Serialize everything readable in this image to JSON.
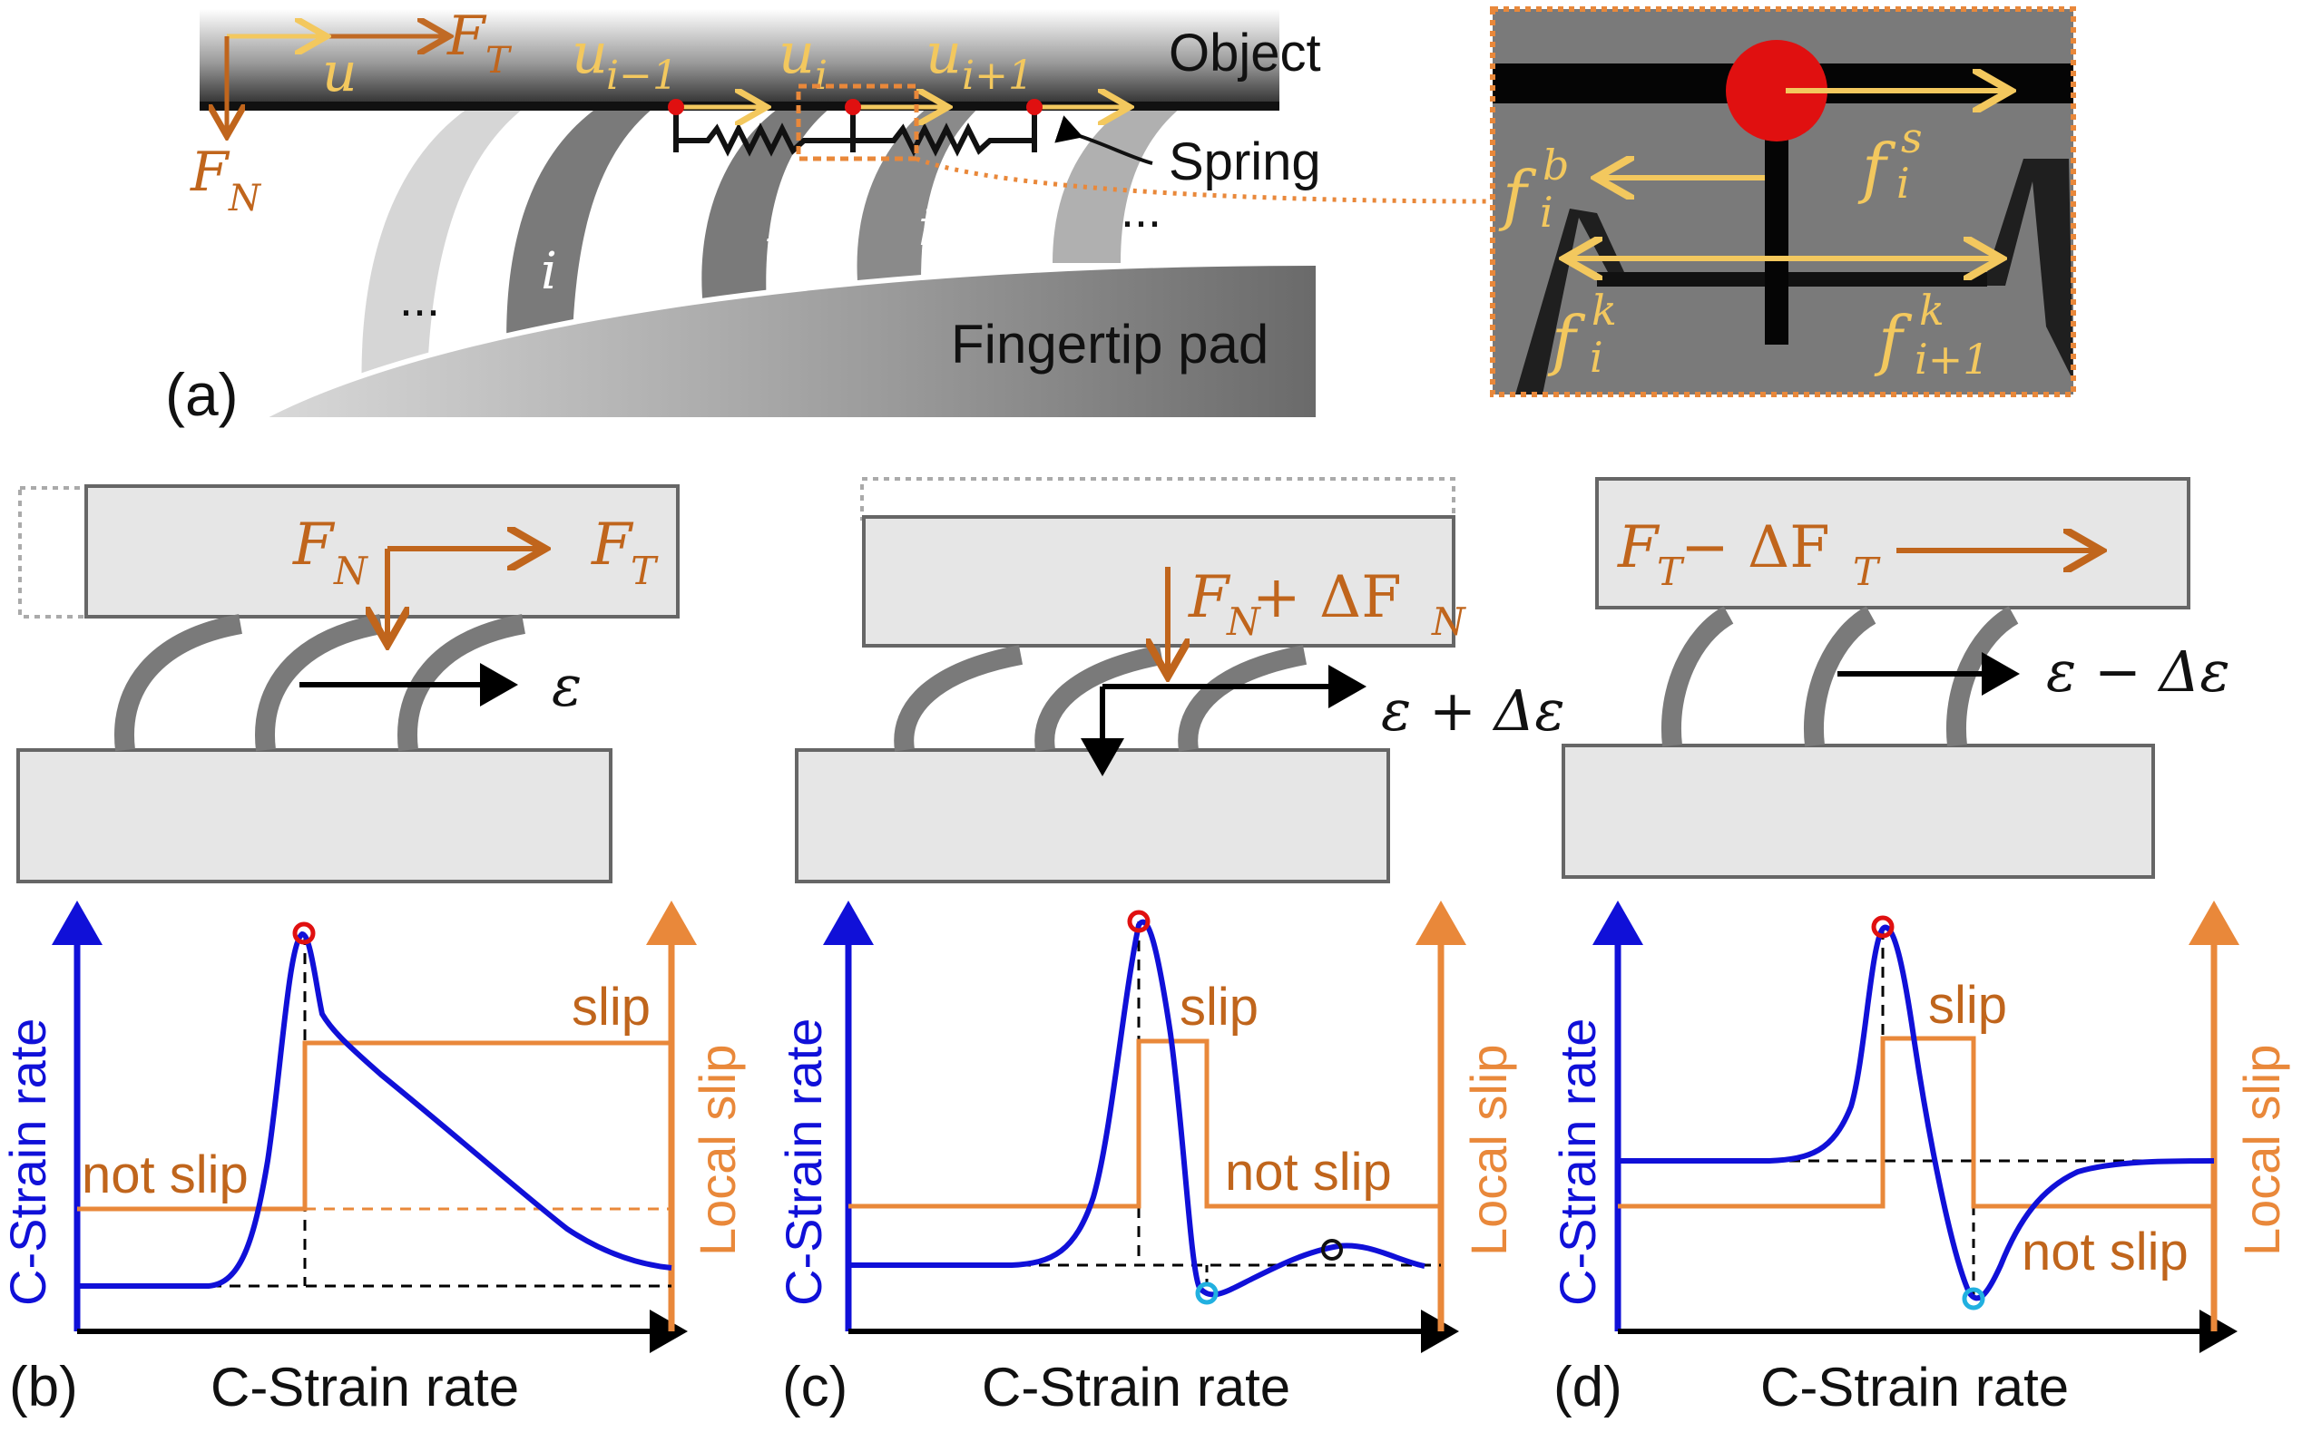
{
  "colors": {
    "force_orange": "#c0651c",
    "light_orange": "#e9883a",
    "yellow_arrow": "#f3c85e",
    "strain_blue": "#1010d8",
    "marker_red": "#e01010",
    "marker_cyan": "#21b0e0",
    "block_fill": "#e6e6e6",
    "block_stroke": "#666666",
    "pillar_gray": "#7a7a7a"
  },
  "panel_a": {
    "panel_label": "(a)",
    "object_label": "Object",
    "spring_label": "Spring",
    "fingertip_label": "Fingertip pad",
    "u": "u",
    "ft": "F",
    "ft_sub": "T",
    "fn": "F",
    "fn_sub": "N",
    "u_prev": "u",
    "u_prev_sub": "i−1",
    "u_cur": "u",
    "u_cur_sub": "i",
    "u_next": "u",
    "u_next_sub": "i+1",
    "pillar_prev": "i −1",
    "pillar_cur": "i",
    "pillar_next": "i+1",
    "ellipsis_left": "...",
    "ellipsis_right": "..."
  },
  "inset": {
    "fs": "f",
    "fs_sup": "s",
    "fs_sub": "i",
    "fb": "f",
    "fb_sup": "b",
    "fb_sub": "i",
    "fk_left": "f",
    "fk_left_sup": "k",
    "fk_left_sub": "i",
    "fk_right": "f",
    "fk_right_sup": "k",
    "fk_right_sub": "i+1"
  },
  "panel_b": {
    "panel_label": "(b)",
    "fn": "F",
    "fn_sub": "N",
    "ft": "F",
    "ft_sub": "T",
    "eps": "ε"
  },
  "panel_c": {
    "panel_label": "(c)",
    "force_main": "F",
    "force_sub": "N",
    "force_rest": " + ΔF",
    "force_rest_sub": "N",
    "eps": "ε + Δε"
  },
  "panel_d": {
    "panel_label": "(d)",
    "force_main": "F",
    "force_sub": "T",
    "force_rest": " − ΔF",
    "force_rest_sub": "T",
    "eps": "ε − Δε"
  },
  "chart_data": [
    {
      "type": "line",
      "panel": "(b)",
      "xlabel": "C-Strain rate",
      "ylabel": "C-Strain rate",
      "ylabel_right": "Local slip",
      "annotations": [
        "not slip",
        "slip"
      ],
      "series": [
        {
          "axis": "left",
          "values": [
            0.12,
            0.12,
            0.9,
            0.54,
            0.33,
            0.14
          ]
        },
        {
          "axis": "right",
          "values": [
            0.3,
            0.3,
            0.8,
            0.8,
            0.8,
            0.8
          ]
        }
      ]
    },
    {
      "type": "line",
      "panel": "(c)",
      "xlabel": "C-Strain rate",
      "ylabel": "C-Strain rate",
      "ylabel_right": "Local slip",
      "annotations": [
        "slip",
        "not slip"
      ],
      "series": [
        {
          "axis": "left",
          "values": [
            0.17,
            0.17,
            1.0,
            0.1,
            0.22,
            0.17
          ]
        },
        {
          "axis": "right",
          "values": [
            0.32,
            0.32,
            0.74,
            0.32,
            0.32,
            0.32
          ]
        }
      ]
    },
    {
      "type": "line",
      "panel": "(d)",
      "xlabel": "C-Strain rate",
      "ylabel": "C-Strain rate",
      "ylabel_right": "Local slip",
      "annotations": [
        "slip",
        "not slip"
      ],
      "series": [
        {
          "axis": "left",
          "values": [
            0.44,
            0.44,
            0.98,
            0.07,
            0.44,
            0.44
          ]
        },
        {
          "axis": "right",
          "values": [
            0.32,
            0.32,
            0.74,
            0.32,
            0.32,
            0.32
          ]
        }
      ]
    }
  ]
}
